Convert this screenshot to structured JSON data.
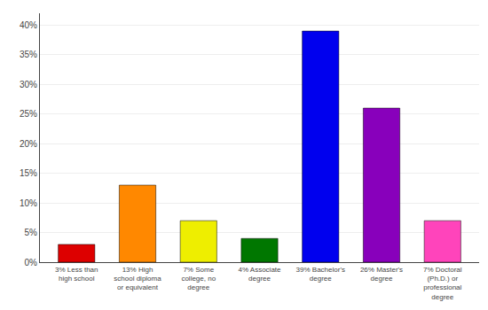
{
  "chart_data": {
    "type": "bar",
    "categories": [
      "3% Less than\nhigh school",
      "13% High\nschool diploma\nor equivalent",
      "7% Some\ncollege, no\ndegree",
      "4% Associate\ndegree",
      "39% Bachelor's\ndegree",
      "26% Master's\ndegree",
      "7% Doctoral\n(Ph.D.) or\nprofessional\ndegree"
    ],
    "values": [
      3,
      13,
      7,
      4,
      39,
      26,
      7
    ],
    "colors": [
      "#dd0000",
      "#ff8800",
      "#eeee00",
      "#007700",
      "#0000ee",
      "#8800bb",
      "#ff44bb"
    ],
    "ylim": [
      0,
      42
    ],
    "yticks": [
      {
        "value": 0,
        "label": "0%"
      },
      {
        "value": 5,
        "label": "5%"
      },
      {
        "value": 10,
        "label": "10%"
      },
      {
        "value": 15,
        "label": "15%"
      },
      {
        "value": 20,
        "label": "20%"
      },
      {
        "value": 25,
        "label": "25%"
      },
      {
        "value": 30,
        "label": "30%"
      },
      {
        "value": 35,
        "label": "35%"
      },
      {
        "value": 40,
        "label": "40%"
      }
    ],
    "grid": true
  }
}
